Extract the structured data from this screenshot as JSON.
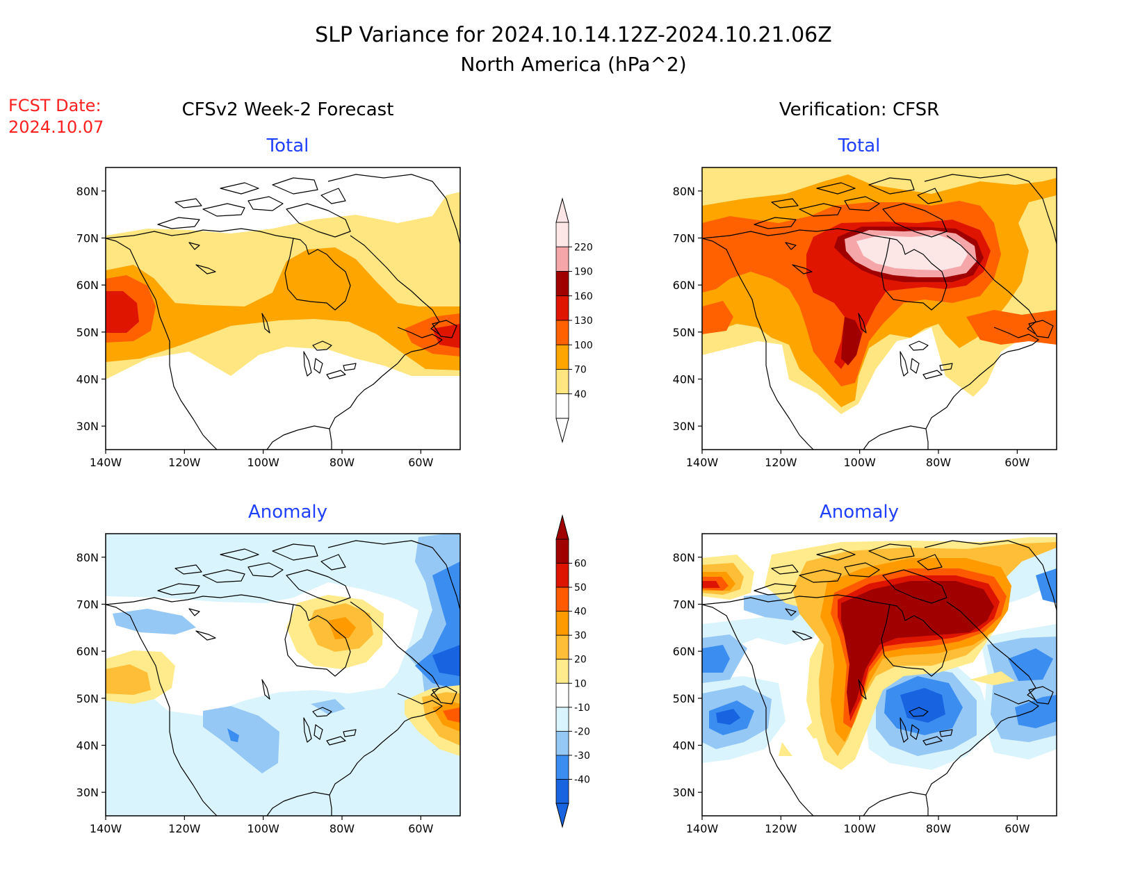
{
  "header": {
    "title": "SLP Variance for 2024.10.14.12Z-2024.10.21.06Z",
    "subtitle": "North America (hPa^2)",
    "fcst_label": "FCST Date:",
    "fcst_date": "2024.10.07"
  },
  "columns": {
    "left": "CFSv2 Week-2 Forecast",
    "right": "Verification: CFSR"
  },
  "panels": {
    "fcst_total": {
      "title": "Total"
    },
    "obs_total": {
      "title": "Total"
    },
    "fcst_anom": {
      "title": "Anomaly"
    },
    "obs_anom": {
      "title": "Anomaly"
    }
  },
  "axes": {
    "lat_labels": [
      "30N",
      "40N",
      "50N",
      "60N",
      "70N",
      "80N"
    ],
    "lat_values": [
      30,
      40,
      50,
      60,
      70,
      80
    ],
    "lon_labels": [
      "140W",
      "120W",
      "100W",
      "80W",
      "60W"
    ],
    "lon_values": [
      -140,
      -120,
      -100,
      -80,
      -60
    ],
    "lon_range": [
      -140,
      -50
    ],
    "lat_range": [
      25,
      85
    ]
  },
  "colorbars": {
    "total": {
      "labels": [
        "40",
        "70",
        "100",
        "130",
        "160",
        "190",
        "220"
      ],
      "colors": [
        "#ffffff",
        "#ffe680",
        "#ffa500",
        "#ff6000",
        "#e01500",
        "#a00000",
        "#f4a6a8",
        "#fde6e6"
      ]
    },
    "anomaly": {
      "labels": [
        "-40",
        "-30",
        "-20",
        "-10",
        "10",
        "20",
        "30",
        "40",
        "50",
        "60"
      ],
      "colors": [
        "#1763e0",
        "#3c8df0",
        "#96c8f5",
        "#d9f4fc",
        "#ffffff",
        "#ffeb8c",
        "#ffbe37",
        "#ff9b00",
        "#ff5a00",
        "#dc1400",
        "#a00000"
      ]
    }
  }
}
